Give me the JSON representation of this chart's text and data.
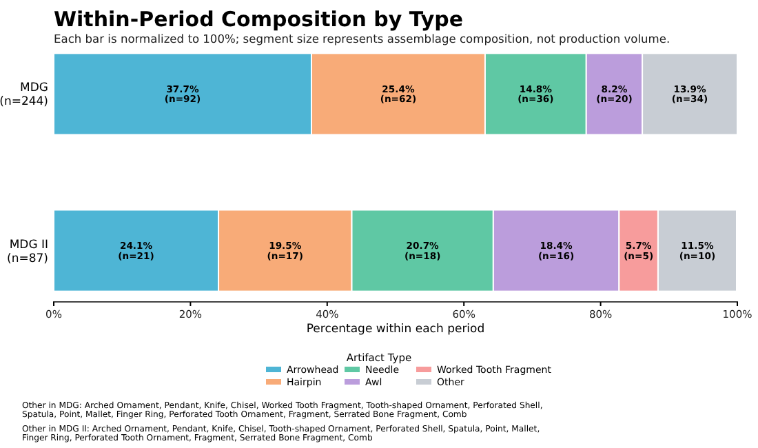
{
  "chart_data": {
    "type": "bar",
    "orientation": "horizontal",
    "stacked": true,
    "title": "Within-Period Composition by Type",
    "subtitle": "Each bar is normalized to 100%; segment size represents assemblage composition, not production volume.",
    "xlabel": "Percentage within each period",
    "categories": [
      "MDG\n(n=244)",
      "MDG II\n(n=87)"
    ],
    "series": [
      {
        "name": "Arrowhead",
        "color": "#4eb5d5",
        "values": [
          37.7,
          24.1
        ],
        "value_labels": [
          "37.7%\n(n=92)",
          "24.1%\n(n=21)"
        ]
      },
      {
        "name": "Hairpin",
        "color": "#f8ab78",
        "values": [
          25.4,
          19.5
        ],
        "value_labels": [
          "25.4%\n(n=62)",
          "19.5%\n(n=17)"
        ]
      },
      {
        "name": "Needle",
        "color": "#5fc8a4",
        "values": [
          14.8,
          20.7
        ],
        "value_labels": [
          "14.8%\n(n=36)",
          "20.7%\n(n=18)"
        ]
      },
      {
        "name": "Awl",
        "color": "#bb9ddc",
        "values": [
          8.2,
          18.4
        ],
        "value_labels": [
          "8.2%\n(n=20)",
          "18.4%\n(n=16)"
        ]
      },
      {
        "name": "Worked Tooth Fragment",
        "color": "#f79c9c",
        "values": [
          null,
          5.7
        ],
        "value_labels": [
          null,
          "5.7%\n(n=5)"
        ]
      },
      {
        "name": "Other",
        "color": "#c8cdd4",
        "values": [
          13.9,
          11.5
        ],
        "value_labels": [
          "13.9%\n(n=34)",
          "11.5%\n(n=10)"
        ]
      }
    ],
    "xlim": [
      0,
      100
    ],
    "xticks": [
      {
        "value": 0,
        "label": "0%"
      },
      {
        "value": 20,
        "label": "20%"
      },
      {
        "value": 40,
        "label": "40%"
      },
      {
        "value": 60,
        "label": "60%"
      },
      {
        "value": 80,
        "label": "80%"
      },
      {
        "value": 100,
        "label": "100%"
      }
    ],
    "grid": false,
    "legend": "bottom",
    "legend_title": "Artifact Type",
    "annotations": [
      "Other in MDG: Arched Ornament, Pendant, Knife, Chisel, Worked Tooth Fragment, Tooth-shaped Ornament, Perforated Shell, Spatula, Point, Mallet, Finger Ring, Perforated Tooth Ornament, Fragment, Serrated Bone Fragment, Comb",
      "Other in MDG II: Arched Ornament, Pendant, Knife, Chisel, Tooth-shaped Ornament, Perforated Shell, Spatula, Point, Mallet, Finger Ring, Perforated Tooth Ornament, Fragment, Serrated Bone Fragment, Comb"
    ]
  }
}
